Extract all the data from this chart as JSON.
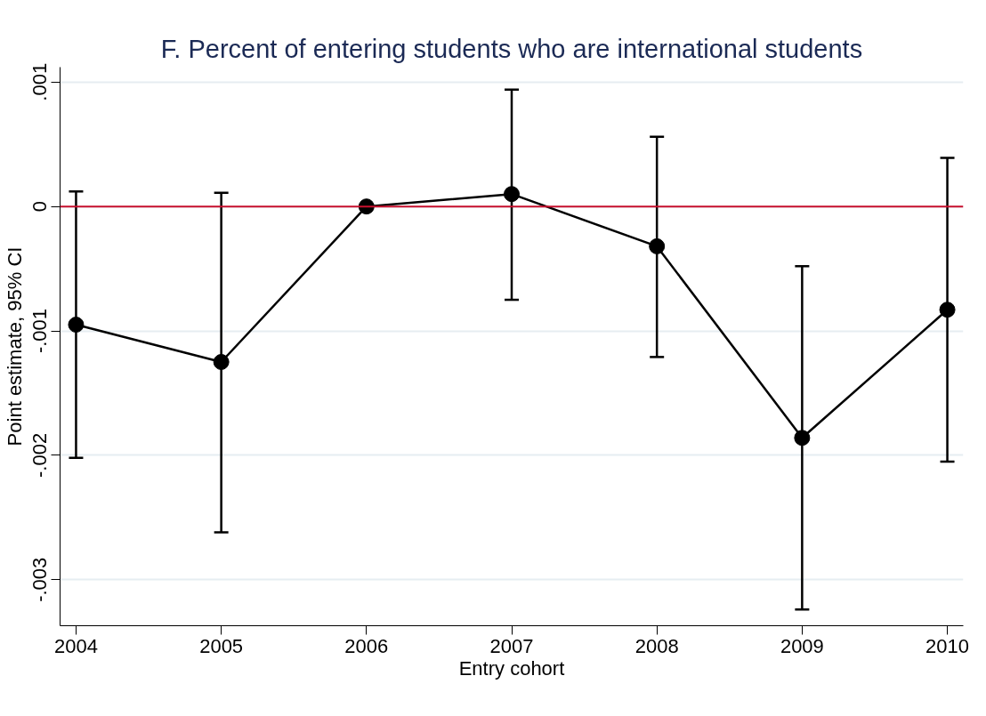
{
  "chart_data": {
    "type": "line",
    "title": "F. Percent of entering students who are international students",
    "xlabel": "Entry cohort",
    "ylabel": "Point estimate, 95% CI",
    "x": [
      2004,
      2005,
      2006,
      2007,
      2008,
      2009,
      2010
    ],
    "series": [
      {
        "color": "#000000",
        "marker": "circle",
        "line_style": "solid",
        "values": [
          -0.00095,
          -0.00125,
          0,
          0.0001,
          -0.00032,
          -0.00186,
          -0.00083
        ],
        "errors": [
          [
            -0.00202,
            0.00012
          ],
          [
            -0.00262,
            0.00011
          ],
          null,
          [
            -0.00075,
            0.00094
          ],
          [
            -0.00121,
            0.00056
          ],
          [
            -0.00324,
            -0.00048
          ],
          [
            -0.00205,
            0.00039
          ]
        ]
      }
    ],
    "xlim": [
      2003.89,
      2010.11
    ],
    "xticks": [
      2004,
      2005,
      2006,
      2007,
      2008,
      2009,
      2010
    ],
    "ylim": [
      -0.00337,
      0.00112
    ],
    "yticks": [
      {
        "value": 0.001,
        "label": ".001"
      },
      0,
      {
        "value": -0.001,
        "label": "-.001"
      },
      {
        "value": -0.002,
        "label": "-.002"
      },
      {
        "value": -0.003,
        "label": "-.003"
      }
    ],
    "grid": "y",
    "ref_lines": [
      {
        "axis": "y",
        "value": 0,
        "color": "#c8102e"
      }
    ]
  }
}
